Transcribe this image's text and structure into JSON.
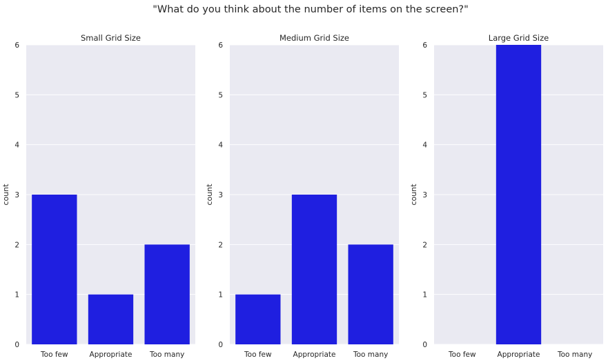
{
  "figure": {
    "title": "\"What do you think about the number of items on the screen?\""
  },
  "colors": {
    "bar": "#1f1fe0",
    "panel_bg": "#eaeaf2",
    "grid": "#ffffff"
  },
  "chart_data": [
    {
      "type": "bar",
      "title": "Small Grid Size",
      "categories": [
        "Too few",
        "Appropriate",
        "Too many"
      ],
      "values": [
        3,
        1,
        2
      ],
      "xlabel": "",
      "ylabel": "count",
      "ylim": [
        0,
        6
      ],
      "yticks": [
        "0",
        "1",
        "2",
        "3",
        "4",
        "5",
        "6"
      ],
      "grid": true
    },
    {
      "type": "bar",
      "title": "Medium Grid Size",
      "categories": [
        "Too few",
        "Appropriate",
        "Too many"
      ],
      "values": [
        1,
        3,
        2
      ],
      "xlabel": "",
      "ylabel": "count",
      "ylim": [
        0,
        6
      ],
      "yticks": [
        "0",
        "1",
        "2",
        "3",
        "4",
        "5",
        "6"
      ],
      "grid": true
    },
    {
      "type": "bar",
      "title": "Large Grid Size",
      "categories": [
        "Too few",
        "Appropriate",
        "Too many"
      ],
      "values": [
        0,
        6,
        0
      ],
      "xlabel": "",
      "ylabel": "count",
      "ylim": [
        0,
        6
      ],
      "yticks": [
        "0",
        "1",
        "2",
        "3",
        "4",
        "5",
        "6"
      ],
      "grid": true
    }
  ]
}
